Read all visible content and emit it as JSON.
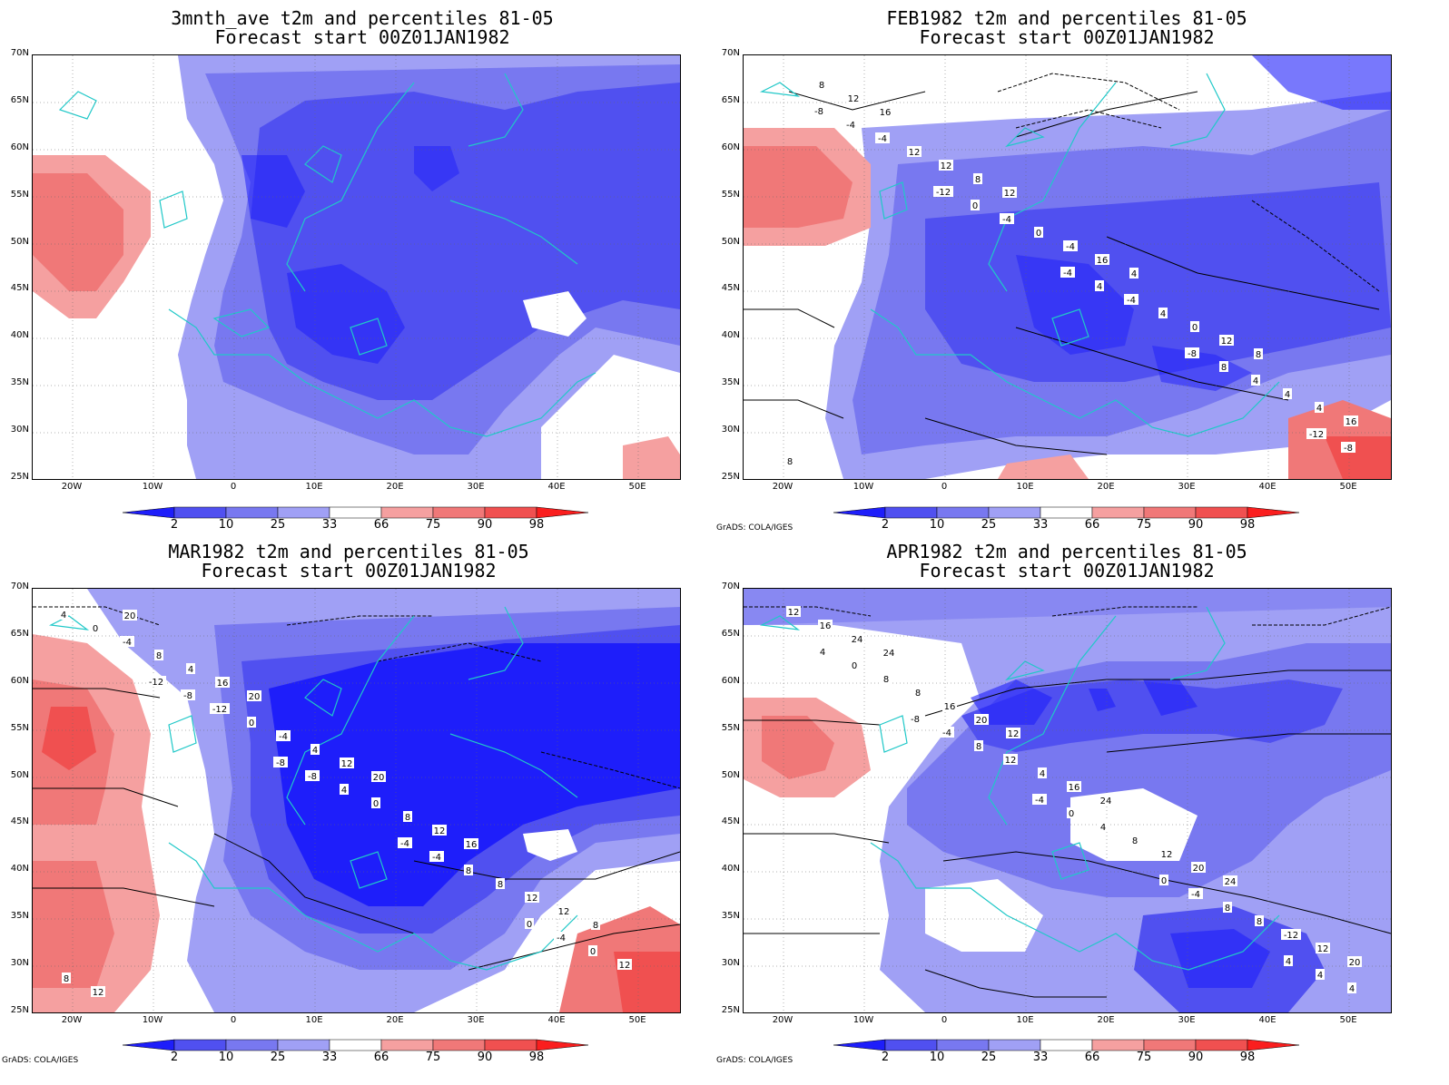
{
  "colors": {
    "blue_dark": "#1e1efa",
    "blue_mid": "#5050f0",
    "blue_light": "#7878f0",
    "blue_pale": "#a0a0f5",
    "white": "#ffffff",
    "red_pale": "#f5a0a0",
    "red_light": "#f07878",
    "red_mid": "#f05050",
    "red_dark": "#fa1e1e",
    "coast": "#20c8c8"
  },
  "colorbar": {
    "labels": [
      "2",
      "10",
      "25",
      "33",
      "66",
      "75",
      "90",
      "98"
    ]
  },
  "axes": {
    "lat_labels": [
      "70N",
      "65N",
      "60N",
      "55N",
      "50N",
      "45N",
      "40N",
      "35N",
      "30N",
      "25N"
    ],
    "lon_labels": [
      "20W",
      "10W",
      "0",
      "10E",
      "20E",
      "30E",
      "40E",
      "50E"
    ]
  },
  "credit": "GrADS: COLA/IGES",
  "panels": [
    {
      "title_line1": "3mnth_ave t2m and percentiles 81-05",
      "title_line2": "Forecast start 00Z01JAN1982",
      "contour_labels": []
    },
    {
      "title_line1": "FEB1982 t2m and percentiles 81-05",
      "title_line2": "Forecast start 00Z01JAN1982",
      "contour_labels": [
        "-8",
        "-12",
        "-4",
        "-8",
        "-12",
        "-4",
        "0",
        "4",
        "8",
        "-8",
        "-4",
        "-4",
        "-4",
        "4",
        "8",
        "12",
        "0",
        "4",
        "4",
        "8",
        "12",
        "-4",
        "0",
        "4",
        "12",
        "8",
        "16",
        "12",
        "16",
        "16",
        "12",
        "4",
        "8"
      ]
    },
    {
      "title_line1": "MAR1982 t2m and percentiles 81-05",
      "title_line2": "Forecast start 00Z01JAN1982",
      "contour_labels": [
        "-12",
        "-8",
        "-4",
        "0",
        "4",
        "-8",
        "-8",
        "-4",
        "-4",
        "0",
        "-12",
        "4",
        "8",
        "0",
        "-4",
        "0",
        "0",
        "8",
        "12",
        "8",
        "-4",
        "8",
        "12",
        "8",
        "4",
        "4",
        "12",
        "12",
        "12",
        "16",
        "12",
        "16",
        "8",
        "20",
        "20",
        "20"
      ]
    },
    {
      "title_line1": "APR1982 t2m and percentiles 81-05",
      "title_line2": "Forecast start 00Z01JAN1982",
      "contour_labels": [
        "-8",
        "-4",
        "0",
        "4",
        "4",
        "-4",
        "0",
        "-4",
        "4",
        "0",
        "8",
        "4",
        "8",
        "4",
        "8",
        "12",
        "8",
        "8",
        "12",
        "8",
        "4",
        "12",
        "-12",
        "16",
        "16",
        "16",
        "20",
        "12",
        "24",
        "20",
        "24",
        "24",
        "20",
        "24",
        "12"
      ]
    }
  ]
}
